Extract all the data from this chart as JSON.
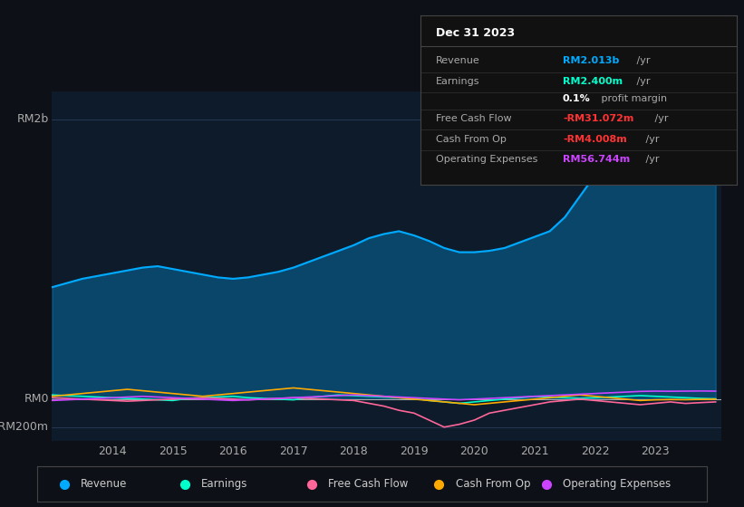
{
  "background_color": "#0d1117",
  "plot_bg_color": "#0d1b2a",
  "ylabel_top": "RM2b",
  "ylabel_mid": "RM0",
  "ylabel_bot": "-RM200m",
  "x_labels": [
    "2014",
    "2015",
    "2016",
    "2017",
    "2018",
    "2019",
    "2020",
    "2021",
    "2022",
    "2023"
  ],
  "legend": [
    {
      "label": "Revenue",
      "color": "#00aaff"
    },
    {
      "label": "Earnings",
      "color": "#00ffcc"
    },
    {
      "label": "Free Cash Flow",
      "color": "#ff6699"
    },
    {
      "label": "Cash From Op",
      "color": "#ffaa00"
    },
    {
      "label": "Operating Expenses",
      "color": "#cc44ff"
    }
  ],
  "info_box": {
    "title": "Dec 31 2023",
    "rows": [
      {
        "label": "Revenue",
        "value": "RM2.013b",
        "suffix": " /yr",
        "value_color": "#00aaff"
      },
      {
        "label": "Earnings",
        "value": "RM2.400m",
        "suffix": " /yr",
        "value_color": "#00ffcc"
      },
      {
        "label": "",
        "value": "0.1%",
        "suffix": " profit margin",
        "value_color": "#ffffff"
      },
      {
        "label": "Free Cash Flow",
        "value": "-RM31.072m",
        "suffix": " /yr",
        "value_color": "#ff3333"
      },
      {
        "label": "Cash From Op",
        "value": "-RM4.008m",
        "suffix": " /yr",
        "value_color": "#ff3333"
      },
      {
        "label": "Operating Expenses",
        "value": "RM56.744m",
        "suffix": " /yr",
        "value_color": "#cc44ff"
      }
    ]
  },
  "revenue_color": "#00aaff",
  "earnings_color": "#00ffcc",
  "fcf_color": "#ff6699",
  "cashfromop_color": "#ffaa00",
  "opex_color": "#cc44ff"
}
